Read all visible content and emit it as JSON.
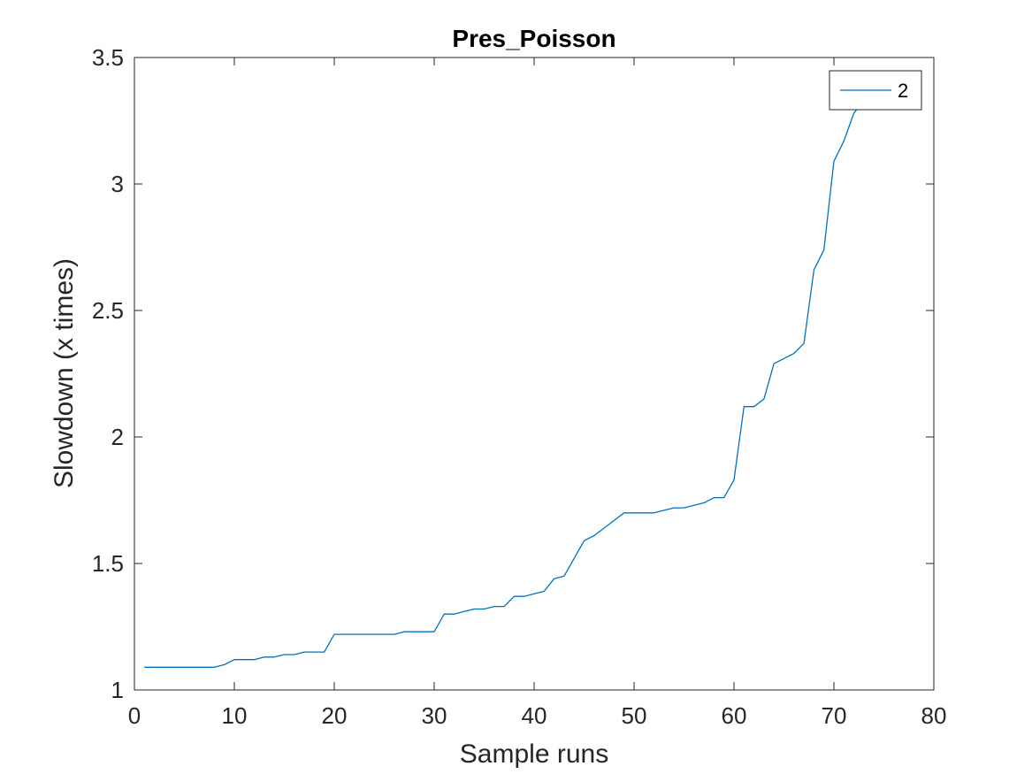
{
  "chart_data": {
    "type": "line",
    "title": "Pres_Poisson",
    "xlabel": "Sample runs",
    "ylabel": "Slowdown (x times)",
    "xlim": [
      0,
      80
    ],
    "ylim": [
      1,
      3.5
    ],
    "xticks": [
      0,
      10,
      20,
      30,
      40,
      50,
      60,
      70,
      80
    ],
    "yticks": [
      1,
      1.5,
      2,
      2.5,
      3,
      3.5
    ],
    "ytick_labels": [
      "1",
      "1.5",
      "2",
      "2.5",
      "3",
      "3.5"
    ],
    "grid": false,
    "legend_position": "top-right",
    "series": [
      {
        "name": "2",
        "color": "#0072BD",
        "x": [
          1,
          2,
          3,
          4,
          5,
          6,
          7,
          8,
          9,
          10,
          11,
          12,
          13,
          14,
          15,
          16,
          17,
          18,
          19,
          20,
          21,
          22,
          23,
          24,
          25,
          26,
          27,
          28,
          29,
          30,
          31,
          32,
          33,
          34,
          35,
          36,
          37,
          38,
          39,
          40,
          41,
          42,
          43,
          44,
          45,
          46,
          47,
          48,
          49,
          50,
          51,
          52,
          53,
          54,
          55,
          56,
          57,
          58,
          59,
          60,
          61,
          62,
          63,
          64,
          65,
          66,
          67,
          68,
          69,
          70,
          71,
          72,
          73
        ],
        "values": [
          1.09,
          1.09,
          1.09,
          1.09,
          1.09,
          1.09,
          1.09,
          1.09,
          1.1,
          1.12,
          1.12,
          1.12,
          1.13,
          1.13,
          1.14,
          1.14,
          1.15,
          1.15,
          1.15,
          1.22,
          1.22,
          1.22,
          1.22,
          1.22,
          1.22,
          1.22,
          1.23,
          1.23,
          1.23,
          1.23,
          1.3,
          1.3,
          1.31,
          1.32,
          1.32,
          1.33,
          1.33,
          1.37,
          1.37,
          1.38,
          1.39,
          1.44,
          1.45,
          1.52,
          1.59,
          1.61,
          1.64,
          1.67,
          1.7,
          1.7,
          1.7,
          1.7,
          1.71,
          1.72,
          1.72,
          1.73,
          1.74,
          1.76,
          1.76,
          1.83,
          2.12,
          2.12,
          2.15,
          2.29,
          2.31,
          2.33,
          2.37,
          2.66,
          2.74,
          3.09,
          3.17,
          3.28,
          3.33
        ]
      }
    ]
  }
}
